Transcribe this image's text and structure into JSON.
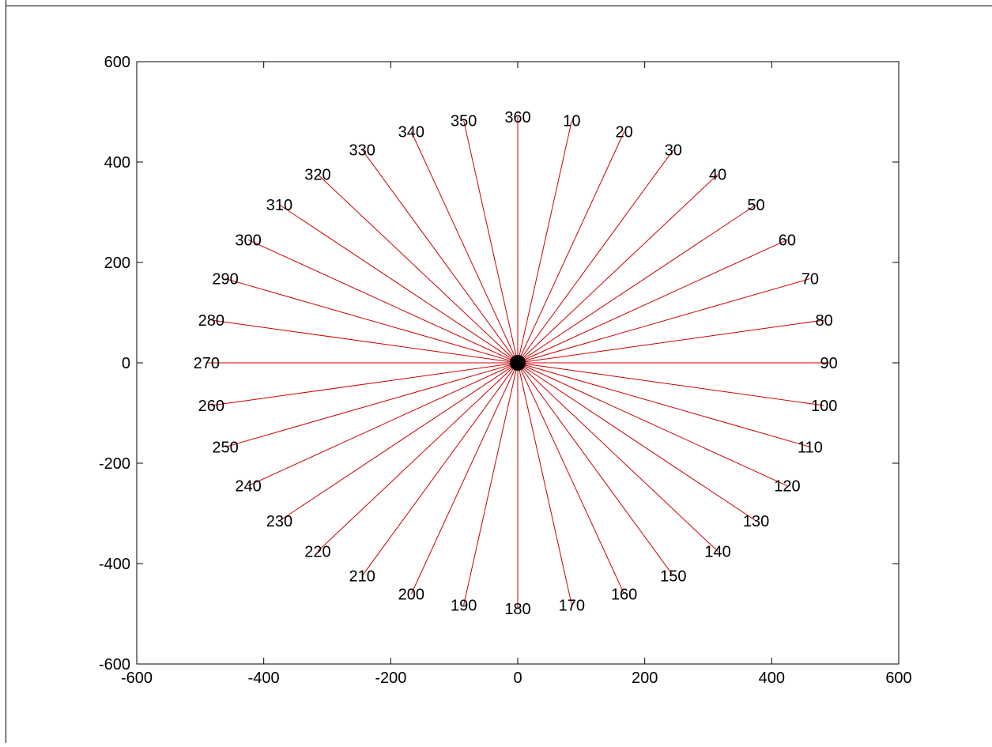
{
  "chart_data": {
    "type": "line",
    "title": "",
    "xlabel": "",
    "ylabel": "",
    "xlim": [
      -600,
      600
    ],
    "ylim": [
      -600,
      600
    ],
    "x_ticks": [
      -600,
      -400,
      -200,
      0,
      200,
      400,
      600
    ],
    "y_ticks": [
      -600,
      -400,
      -200,
      0,
      200,
      400,
      600
    ],
    "x_tick_labels": [
      "-600",
      "-400",
      "-200",
      "0",
      "200",
      "400",
      "600"
    ],
    "y_tick_labels": [
      "-600",
      "-400",
      "-200",
      "0",
      "200",
      "400",
      "600"
    ],
    "grid": false,
    "legend": "none",
    "center": {
      "x": 0,
      "y": 0
    },
    "ray_length": 490,
    "rays": [
      {
        "angle": 10,
        "label": "10"
      },
      {
        "angle": 20,
        "label": "20"
      },
      {
        "angle": 30,
        "label": "30"
      },
      {
        "angle": 40,
        "label": "40"
      },
      {
        "angle": 50,
        "label": "50"
      },
      {
        "angle": 60,
        "label": "60"
      },
      {
        "angle": 70,
        "label": "70"
      },
      {
        "angle": 80,
        "label": "80"
      },
      {
        "angle": 90,
        "label": "90"
      },
      {
        "angle": 100,
        "label": "100"
      },
      {
        "angle": 110,
        "label": "110"
      },
      {
        "angle": 120,
        "label": "120"
      },
      {
        "angle": 130,
        "label": "130"
      },
      {
        "angle": 140,
        "label": "140"
      },
      {
        "angle": 150,
        "label": "150"
      },
      {
        "angle": 160,
        "label": "160"
      },
      {
        "angle": 170,
        "label": "170"
      },
      {
        "angle": 180,
        "label": "180"
      },
      {
        "angle": 190,
        "label": "190"
      },
      {
        "angle": 200,
        "label": "200"
      },
      {
        "angle": 210,
        "label": "210"
      },
      {
        "angle": 220,
        "label": "220"
      },
      {
        "angle": 230,
        "label": "230"
      },
      {
        "angle": 240,
        "label": "240"
      },
      {
        "angle": 250,
        "label": "250"
      },
      {
        "angle": 260,
        "label": "260"
      },
      {
        "angle": 270,
        "label": "270"
      },
      {
        "angle": 280,
        "label": "280"
      },
      {
        "angle": 290,
        "label": "290"
      },
      {
        "angle": 300,
        "label": "300"
      },
      {
        "angle": 310,
        "label": "310"
      },
      {
        "angle": 320,
        "label": "320"
      },
      {
        "angle": 330,
        "label": "330"
      },
      {
        "angle": 340,
        "label": "340"
      },
      {
        "angle": 350,
        "label": "350"
      },
      {
        "angle": 360,
        "label": "360"
      }
    ],
    "colors": {
      "ray": "#cc0000",
      "center_marker": "#000000",
      "axes": "#000000",
      "text": "#000000",
      "background": "#ffffff"
    }
  }
}
